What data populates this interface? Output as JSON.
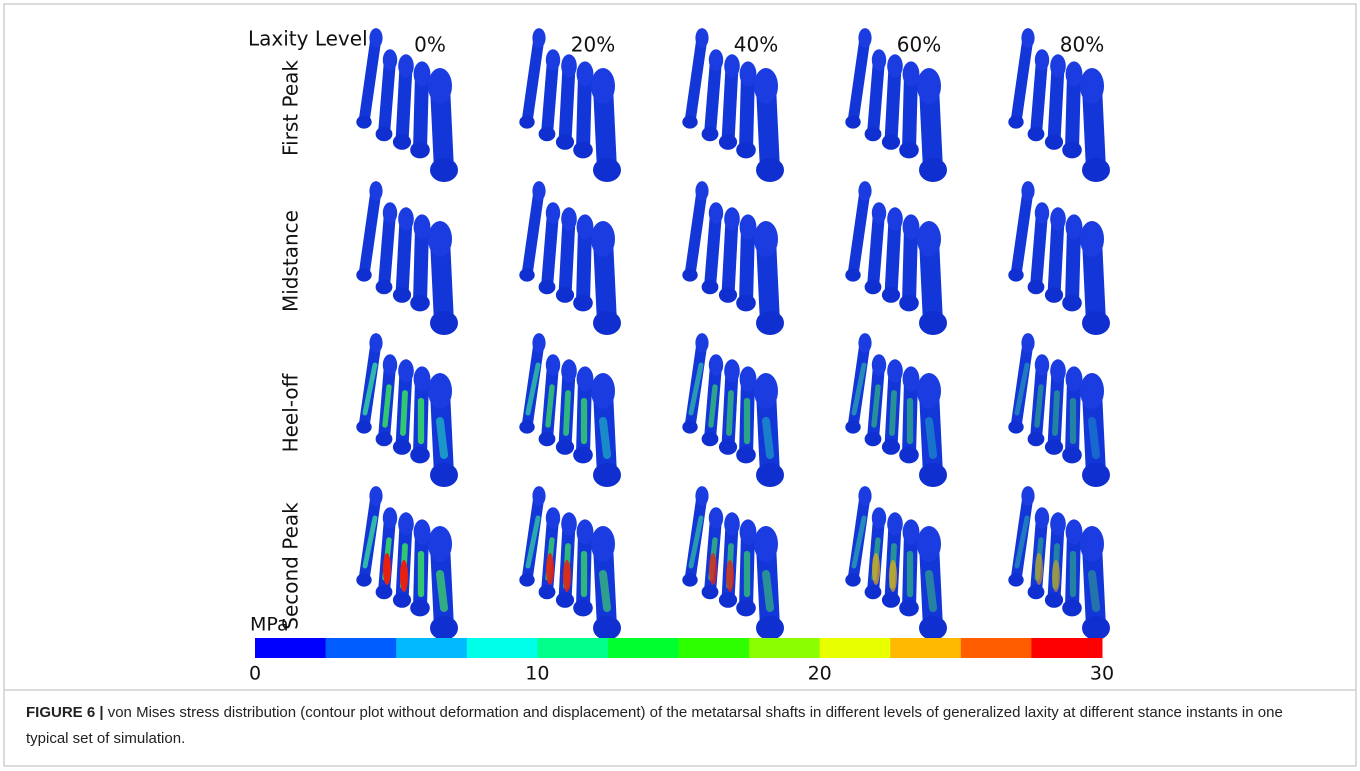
{
  "figure": {
    "laxity_label": "Laxity Level",
    "columns": [
      "0%",
      "20%",
      "40%",
      "60%",
      "80%"
    ],
    "rows": [
      "First Peak",
      "Midstance",
      "Heel-off",
      "Second Peak"
    ],
    "colorbar": {
      "unit": "MPa",
      "range": [
        0,
        30
      ],
      "ticks": [
        0,
        10,
        20,
        30
      ],
      "colors": [
        "#0000ff",
        "#005dff",
        "#00b9ff",
        "#00ffe8",
        "#00ff8b",
        "#00ff2e",
        "#2eff00",
        "#8bff00",
        "#e8ff00",
        "#ffb900",
        "#ff5d00",
        "#ff0000"
      ]
    }
  },
  "caption": {
    "label": "FIGURE 6 |",
    "text": "von Mises stress distribution (contour plot without deformation and displacement) of the metatarsal shafts in different levels of generalized laxity at different stance instants in one typical set of simulation."
  }
}
